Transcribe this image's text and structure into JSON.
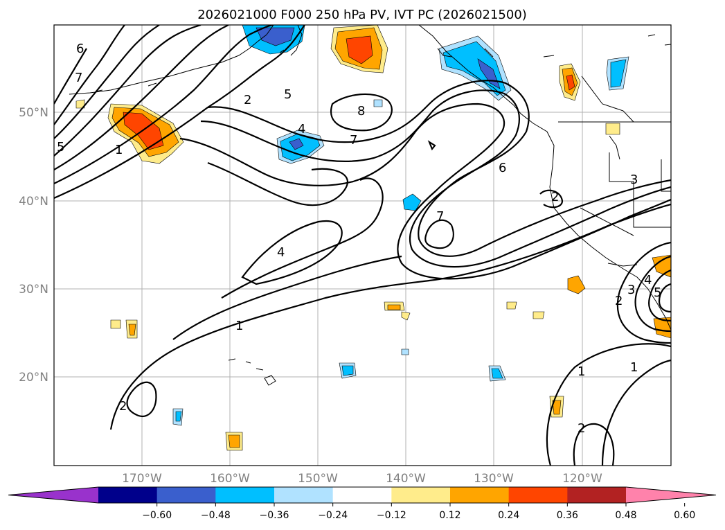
{
  "title": "2026021000 F000 250 hPa PV, IVT PC (2026021500)",
  "lon_ticks": [
    "170°W",
    "160°W",
    "150°W",
    "140°W",
    "130°W",
    "120°W"
  ],
  "lat_ticks": [
    "50°N",
    "40°N",
    "30°N",
    "20°N"
  ],
  "colorbar": {
    "colors": [
      "#9932cc",
      "#00008b",
      "#3a5fcd",
      "#00bfff",
      "#b0e2ff",
      "#ffffff",
      "#ffec8b",
      "#ffa500",
      "#ff4500",
      "#b22222",
      "#ff82ab"
    ],
    "ticks": [
      "−0.60",
      "−0.48",
      "−0.36",
      "−0.24",
      "−0.12",
      "0.12",
      "0.24",
      "0.36",
      "0.48",
      "0.60"
    ]
  },
  "contour_labels": [
    "6",
    "7",
    "5",
    "1",
    "2",
    "5",
    "4",
    "8",
    "7",
    "6",
    "3",
    "2",
    "4",
    "1",
    "7",
    "2",
    "3",
    "4",
    "5",
    "1",
    "1",
    "2",
    "2"
  ]
}
